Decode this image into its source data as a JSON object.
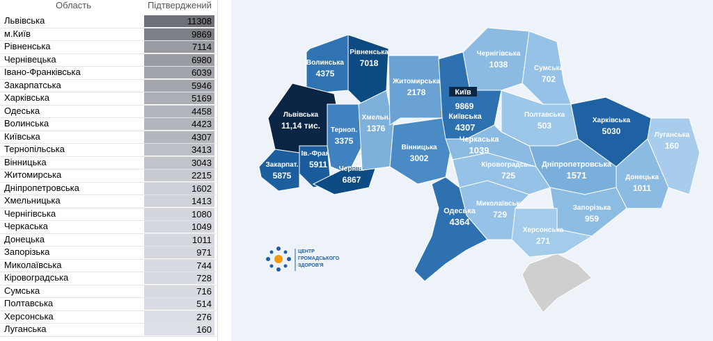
{
  "table": {
    "headers": [
      "Область",
      "Підтверджений"
    ],
    "rows": [
      [
        "Львівська",
        11308
      ],
      [
        "м.Київ",
        9869
      ],
      [
        "Рівненська",
        7114
      ],
      [
        "Чернівецька",
        6980
      ],
      [
        "Івано-Франківська",
        6039
      ],
      [
        "Закарпатська",
        5946
      ],
      [
        "Харківська",
        5169
      ],
      [
        "Одеська",
        4458
      ],
      [
        "Волинська",
        4423
      ],
      [
        "Київська",
        4307
      ],
      [
        "Тернопільська",
        3413
      ],
      [
        "Вінницька",
        3043
      ],
      [
        "Житомирська",
        2215
      ],
      [
        "Дніпропетровська",
        1602
      ],
      [
        "Хмельницька",
        1413
      ],
      [
        "Чернігівська",
        1080
      ],
      [
        "Черкаська",
        1049
      ],
      [
        "Донецька",
        1011
      ],
      [
        "Запорізька",
        971
      ],
      [
        "Миколаївська",
        744
      ],
      [
        "Кіровоградська",
        728
      ],
      [
        "Сумська",
        716
      ],
      [
        "Полтавська",
        514
      ],
      [
        "Херсонська",
        276
      ],
      [
        "Луганська",
        160
      ]
    ]
  },
  "map": {
    "regions": [
      {
        "name": "Волинська",
        "value": 4375,
        "color": "#2f73b2"
      },
      {
        "name": "Рівненська",
        "value": 7018,
        "color": "#0c4a82"
      },
      {
        "name": "Львівська",
        "value": "11,14 тис.",
        "color": "#0b2545"
      },
      {
        "name": "Закарпат.",
        "value": 5875,
        "color": "#1c5e9e"
      },
      {
        "name": "Ів.-Франк.",
        "value": 5911,
        "color": "#1a5c9c"
      },
      {
        "name": "Терноп.",
        "value": 3375,
        "color": "#3f82bf"
      },
      {
        "name": "Чернів.",
        "value": 6867,
        "color": "#0d4b84"
      },
      {
        "name": "Хмельн.",
        "value": 1376,
        "color": "#7eb0dc"
      },
      {
        "name": "Житомирська",
        "value": 2178,
        "color": "#6aa2d4"
      },
      {
        "name": "Вінницька",
        "value": 3002,
        "color": "#4a8bc6"
      },
      {
        "name": "Київська",
        "value": 4307,
        "color": "#2e71b0"
      },
      {
        "name": "Чернігівська",
        "value": 1038,
        "color": "#8bbbe2"
      },
      {
        "name": "Сумська",
        "value": 702,
        "color": "#95c2e6"
      },
      {
        "name": "Полтавська",
        "value": 503,
        "color": "#9cc7e8"
      },
      {
        "name": "Харківська",
        "value": 5030,
        "color": "#1f62a3"
      },
      {
        "name": "Луганська",
        "value": 160,
        "color": "#a8cdec"
      },
      {
        "name": "Донецька",
        "value": 1011,
        "color": "#8bbbe2"
      },
      {
        "name": "Дніпропетровська",
        "value": 1571,
        "color": "#7aaedb"
      },
      {
        "name": "Запорізька",
        "value": 959,
        "color": "#8dbce3"
      },
      {
        "name": "Херсонська",
        "value": 271,
        "color": "#a3cbea"
      },
      {
        "name": "Миколаївська",
        "value": 729,
        "color": "#95c2e6"
      },
      {
        "name": "Кіровоградська",
        "value": 725,
        "color": "#95c2e6"
      },
      {
        "name": "Черкаська",
        "value": 1039,
        "color": "#8bbbe2"
      },
      {
        "name": "Одеська",
        "value": 4364,
        "color": "#2e71b0"
      }
    ],
    "city": {
      "name": "Київ",
      "value": 9869
    },
    "logo": [
      "ЦЕНТР",
      "ГРОМАДСЬКОГО",
      "ЗДОРОВ'Я"
    ]
  }
}
